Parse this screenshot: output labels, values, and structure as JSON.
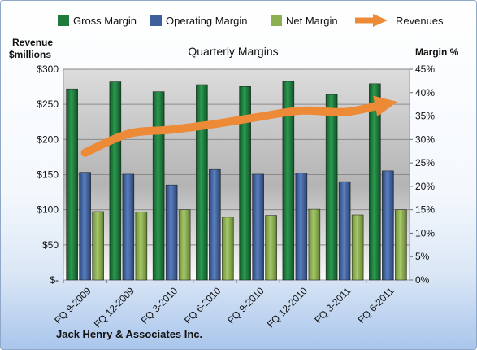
{
  "chart_data": {
    "type": "bar",
    "title": "Quarterly Margins",
    "footer": "Jack Henry & Associates Inc.",
    "y_left_label_line1": "Revenue",
    "y_left_label_line2": "$millions",
    "y_right_label": "Margin %",
    "categories": [
      "FQ 9-2009",
      "FQ 12-2009",
      "FQ 3-2010",
      "FQ 6-2010",
      "FQ 9-2010",
      "FQ 12-2010",
      "FQ 3-2011",
      "FQ 6-2011"
    ],
    "y_left_ticks": [
      "$-",
      "$50",
      "$100",
      "$150",
      "$200",
      "$250",
      "$300"
    ],
    "y_right_ticks": [
      "0%",
      "5%",
      "10%",
      "15%",
      "20%",
      "25%",
      "30%",
      "35%",
      "40%",
      "45%"
    ],
    "ylim_left": [
      0,
      300
    ],
    "ylim_right": [
      0,
      45
    ],
    "legend": [
      "Gross Margin",
      "Operating Margin",
      "Net Margin",
      "Revenues"
    ],
    "legend_position": "top",
    "series": [
      {
        "name": "Gross Margin",
        "type": "bar",
        "axis": "right",
        "color": "#1e7b3c",
        "values": [
          40.8,
          42.3,
          40.2,
          41.7,
          41.3,
          42.4,
          39.6,
          41.9
        ]
      },
      {
        "name": "Operating Margin",
        "type": "bar",
        "axis": "right",
        "color": "#3e5f9c",
        "values": [
          23.0,
          22.6,
          20.3,
          23.6,
          22.6,
          22.8,
          21.0,
          23.3
        ]
      },
      {
        "name": "Net Margin",
        "type": "bar",
        "axis": "right",
        "color": "#8cb050",
        "values": [
          14.6,
          14.5,
          15.0,
          13.4,
          13.8,
          15.1,
          13.9,
          15.0
        ]
      },
      {
        "name": "Revenues",
        "type": "line",
        "axis": "left",
        "color": "#ed8a38",
        "values": [
          181,
          208,
          214,
          222,
          232,
          241,
          239,
          251
        ]
      }
    ]
  }
}
